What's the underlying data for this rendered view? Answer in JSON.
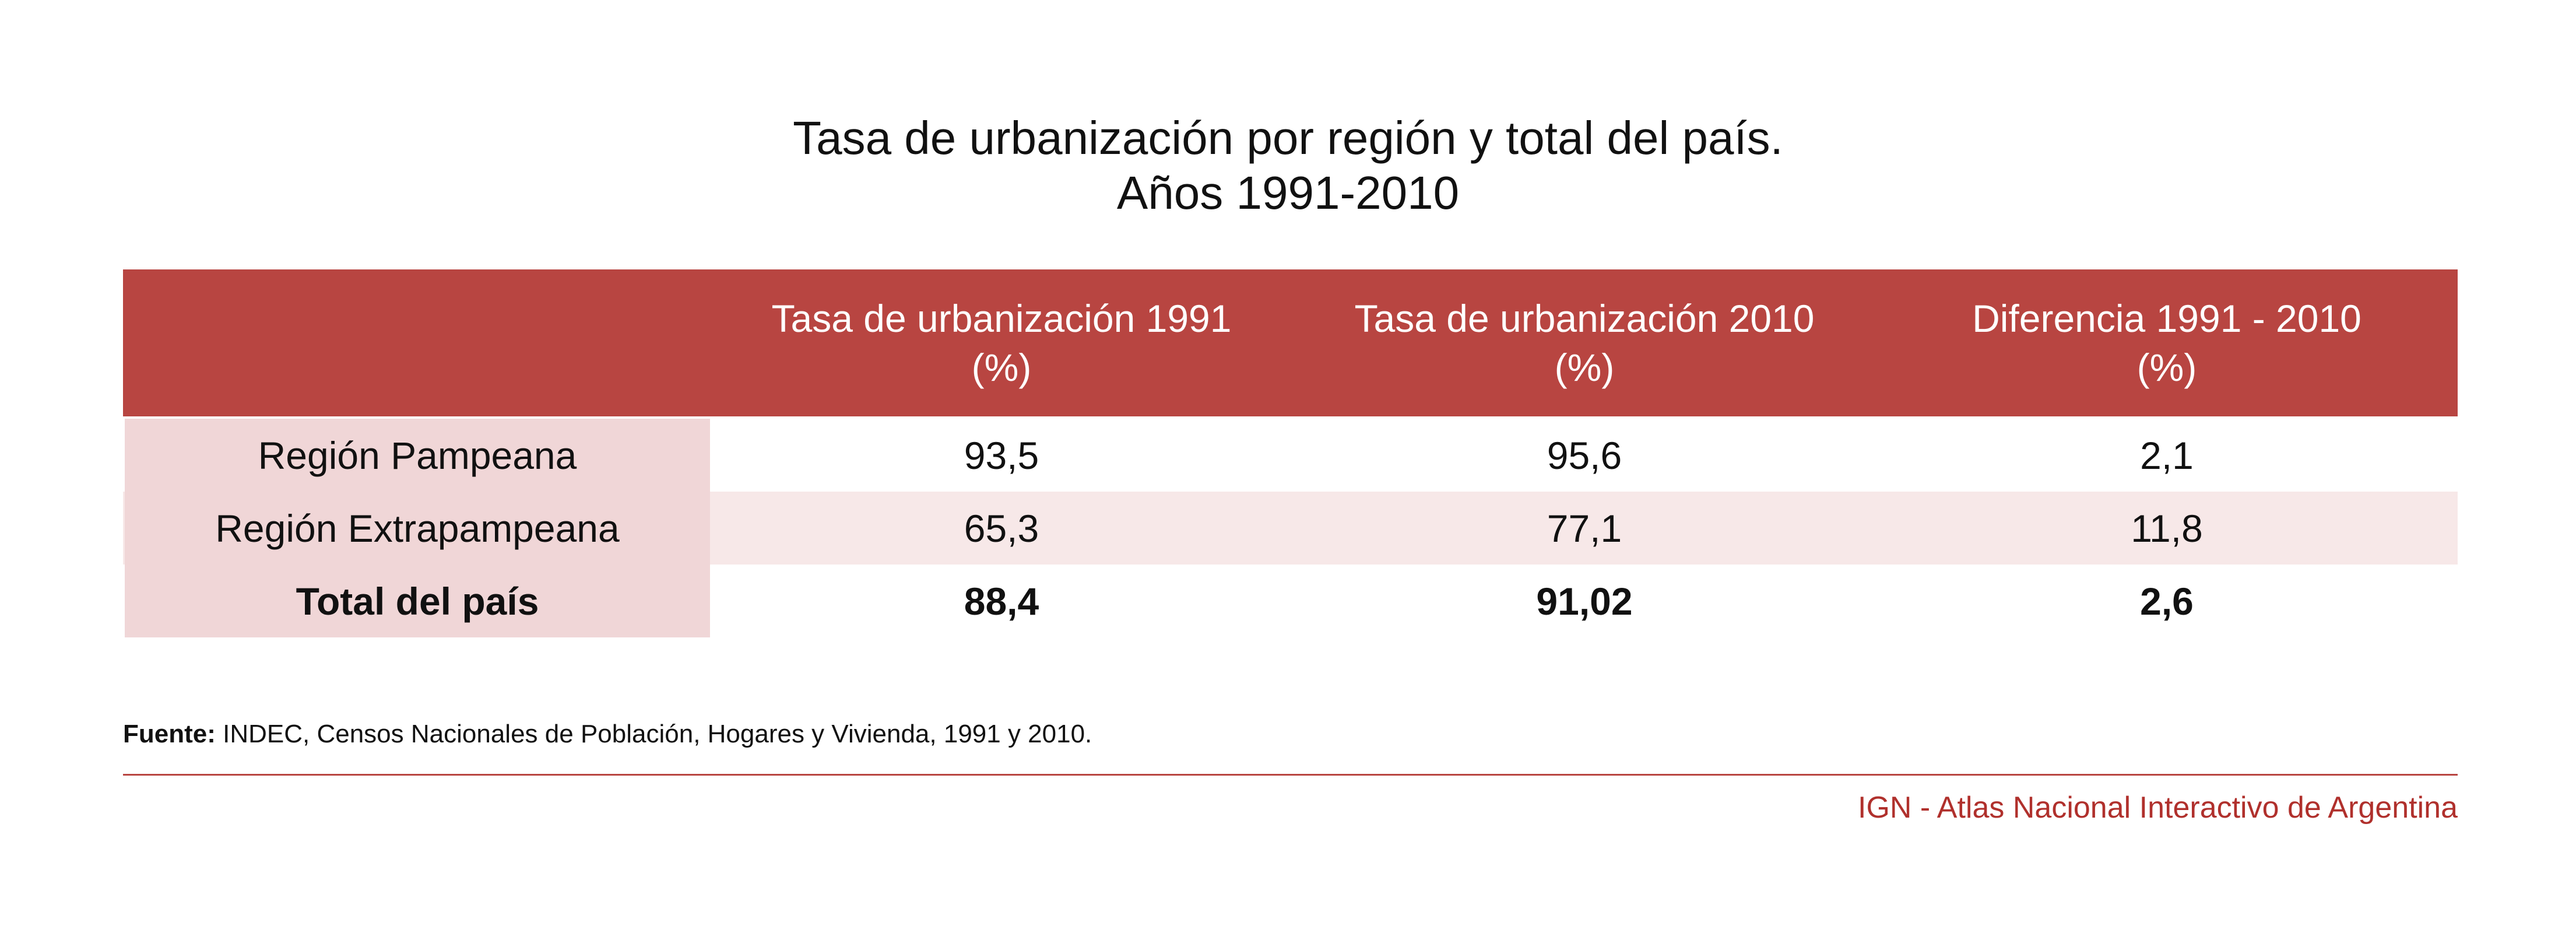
{
  "chart_data": {
    "type": "table",
    "title": "Tasa de urbanización por región y total del país.",
    "subtitle": "Años 1991-2010",
    "columns": [
      {
        "line1": "",
        "line2": ""
      },
      {
        "line1": "Tasa de urbanización 1991",
        "line2": "(%)"
      },
      {
        "line1": "Tasa de urbanización 2010",
        "line2": "(%)"
      },
      {
        "line1": "Diferencia 1991 - 2010",
        "line2": "(%)"
      }
    ],
    "rows": [
      {
        "label": "Región Pampeana",
        "values": [
          "93,5",
          "95,6",
          "2,1"
        ]
      },
      {
        "label": "Región Extrapampeana",
        "values": [
          "65,3",
          "77,1",
          "11,8"
        ]
      },
      {
        "label": "Total del país",
        "values": [
          "88,4",
          "91,02",
          "2,6"
        ]
      }
    ]
  },
  "footer": {
    "source_label": "Fuente:",
    "source_text": " INDEC, Censos Nacionales de Población, Hogares y Vivienda, 1991 y 2010.",
    "credit": "IGN - Atlas Nacional Interactivo de Argentina"
  },
  "colors": {
    "header_bg": "#b84541",
    "label_col_bg": "#f0d6d7",
    "alt_row_bg": "#f7e8e8",
    "credit_text": "#b0302c"
  }
}
